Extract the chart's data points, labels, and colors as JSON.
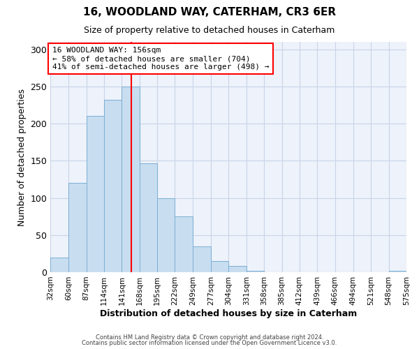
{
  "title": "16, WOODLAND WAY, CATERHAM, CR3 6ER",
  "subtitle": "Size of property relative to detached houses in Caterham",
  "xlabel": "Distribution of detached houses by size in Caterham",
  "ylabel": "Number of detached properties",
  "bar_color": "#c8ddf0",
  "bar_edge_color": "#7aafd4",
  "bg_color": "#eef2fa",
  "grid_color": "#c8d4e8",
  "annotation_line_color": "red",
  "annotation_property": "16 WOODLAND WAY: 156sqm",
  "annotation_line1": "← 58% of detached houses are smaller (704)",
  "annotation_line2": "41% of semi-detached houses are larger (498) →",
  "property_value": 156,
  "bin_edges": [
    32,
    60,
    87,
    114,
    141,
    168,
    195,
    222,
    249,
    277,
    304,
    331,
    358,
    385,
    412,
    439,
    466,
    494,
    521,
    548,
    575
  ],
  "bar_heights": [
    20,
    120,
    210,
    232,
    250,
    147,
    100,
    75,
    35,
    15,
    8,
    2,
    0,
    0,
    0,
    0,
    0,
    0,
    0,
    2
  ],
  "ylim": [
    0,
    310
  ],
  "yticks": [
    0,
    50,
    100,
    150,
    200,
    250,
    300
  ],
  "footer1": "Contains HM Land Registry data © Crown copyright and database right 2024.",
  "footer2": "Contains public sector information licensed under the Open Government Licence v3.0."
}
